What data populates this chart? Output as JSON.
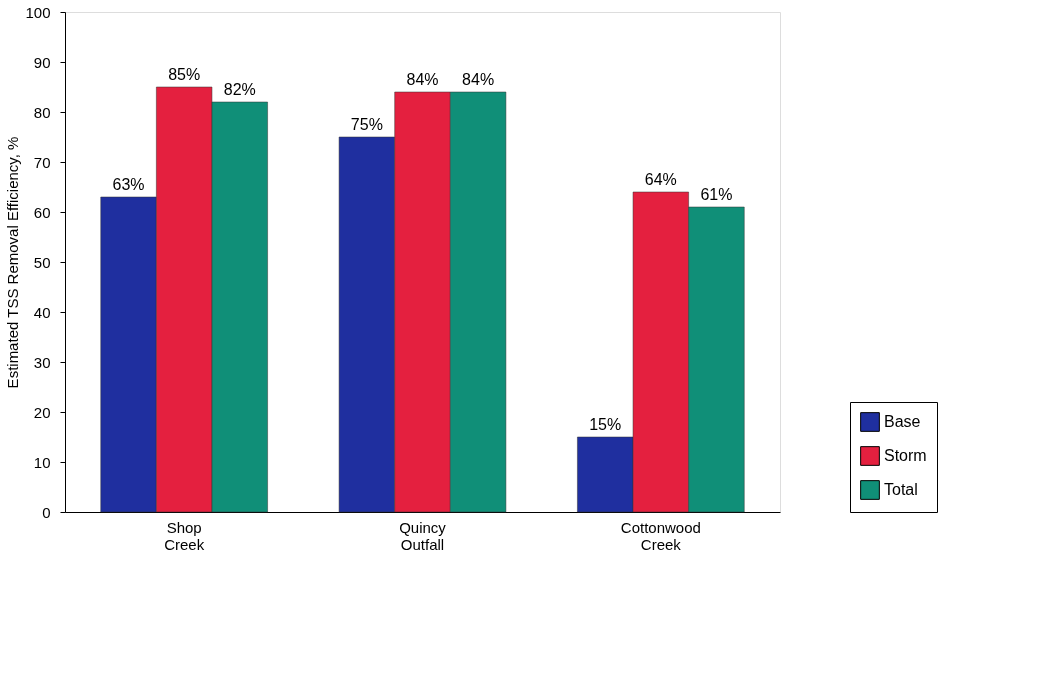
{
  "chart_data": {
    "type": "bar",
    "ylabel": "Estimated TSS Removal Efficiency, %",
    "categories": [
      "Shop Creek",
      "Quincy Outfall",
      "Cottonwood Creek"
    ],
    "series": [
      {
        "name": "Base",
        "color": "#1f2f9f",
        "values": [
          63,
          75,
          15
        ],
        "value_labels": [
          "63%",
          "75%",
          "15%"
        ]
      },
      {
        "name": "Storm",
        "color": "#e4203f",
        "values": [
          85,
          84,
          64
        ],
        "value_labels": [
          "85%",
          "84%",
          "64%"
        ]
      },
      {
        "name": "Total",
        "color": "#108f78",
        "values": [
          82,
          84,
          61
        ],
        "value_labels": [
          "82%",
          "84%",
          "61%"
        ]
      }
    ],
    "ylim": [
      0,
      100
    ],
    "yticks": [
      0,
      10,
      20,
      30,
      40,
      50,
      60,
      70,
      80,
      90,
      100
    ],
    "grid": false,
    "legend": "bottom right"
  }
}
